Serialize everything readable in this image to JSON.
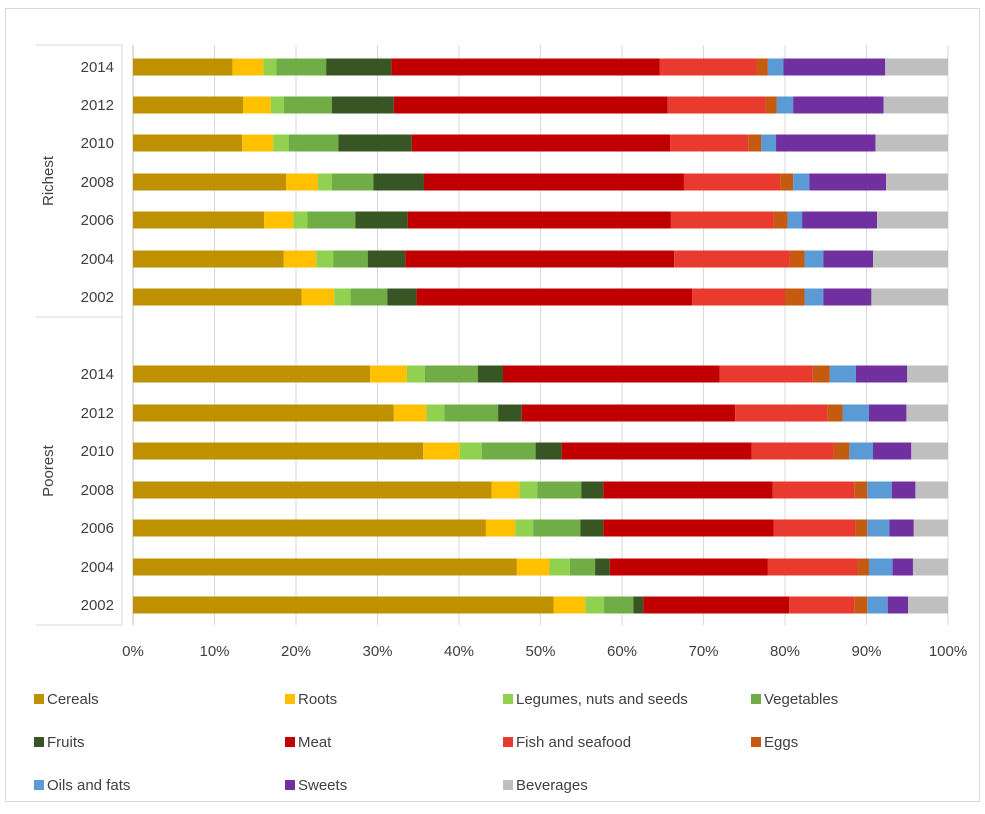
{
  "chart_data": {
    "type": "bar",
    "orientation": "horizontal",
    "stacked": true,
    "percent": true,
    "xlim": [
      0,
      100
    ],
    "ticks": [
      "0%",
      "10%",
      "20%",
      "30%",
      "40%",
      "50%",
      "60%",
      "70%",
      "80%",
      "90%",
      "100%"
    ],
    "grid": true,
    "legend_position": "bottom",
    "groups": [
      {
        "name": "Richest",
        "categories": [
          "2014",
          "2012",
          "2010",
          "2008",
          "2006",
          "2004",
          "2002"
        ]
      },
      {
        "name": "Poorest",
        "categories": [
          "2014",
          "2012",
          "2010",
          "2008",
          "2006",
          "2004",
          "2002"
        ]
      }
    ],
    "series": [
      {
        "name": "Cereals",
        "color": "#BF9000",
        "values": [
          12.2,
          13.5,
          13.4,
          18.8,
          16.1,
          18.5,
          20.7,
          29.1,
          32.0,
          35.6,
          44.0,
          43.3,
          47.1,
          51.6
        ]
      },
      {
        "name": "Roots",
        "color": "#FFC000",
        "values": [
          3.8,
          3.4,
          3.8,
          3.9,
          3.6,
          4.0,
          4.0,
          4.5,
          4.0,
          4.5,
          3.4,
          3.6,
          4.0,
          3.9
        ]
      },
      {
        "name": "Legumes, nuts and seeds",
        "color": "#92D050",
        "values": [
          1.6,
          1.6,
          1.9,
          1.7,
          1.7,
          2.1,
          2.0,
          2.2,
          2.2,
          2.7,
          2.2,
          2.2,
          2.5,
          2.3
        ]
      },
      {
        "name": "Vegetables",
        "color": "#70AD47",
        "values": [
          6.1,
          5.9,
          6.1,
          5.1,
          5.9,
          4.2,
          4.5,
          6.5,
          6.6,
          6.6,
          5.4,
          5.8,
          3.1,
          3.6
        ]
      },
      {
        "name": "Fruits",
        "color": "#375623",
        "values": [
          8.0,
          7.6,
          9.0,
          6.2,
          6.4,
          4.6,
          3.6,
          3.1,
          2.9,
          3.2,
          2.7,
          2.8,
          1.8,
          1.2
        ]
      },
      {
        "name": "Meat",
        "color": "#C00000",
        "values": [
          32.9,
          33.6,
          31.7,
          31.9,
          32.3,
          33.0,
          33.8,
          26.6,
          26.2,
          23.3,
          20.8,
          20.9,
          19.4,
          17.9
        ]
      },
      {
        "name": "Fish and seafood",
        "color": "#E83A2E",
        "values": [
          11.9,
          12.0,
          9.6,
          11.8,
          12.6,
          14.2,
          11.4,
          11.4,
          11.3,
          10.1,
          10.0,
          10.0,
          11.0,
          8.0
        ]
      },
      {
        "name": "Eggs",
        "color": "#C55A11",
        "values": [
          1.4,
          1.4,
          1.6,
          1.6,
          1.7,
          1.8,
          2.4,
          2.1,
          1.9,
          1.9,
          1.6,
          1.5,
          1.4,
          1.6
        ]
      },
      {
        "name": "Oils and fats",
        "color": "#5B9BD5",
        "values": [
          1.9,
          2.0,
          1.8,
          2.0,
          1.8,
          2.3,
          2.3,
          3.2,
          3.2,
          2.9,
          3.0,
          2.7,
          2.9,
          2.5
        ]
      },
      {
        "name": "Sweets",
        "color": "#7030A0",
        "values": [
          12.5,
          11.1,
          12.2,
          9.4,
          9.2,
          6.1,
          5.9,
          6.3,
          4.6,
          4.7,
          2.9,
          3.0,
          2.5,
          2.5
        ]
      },
      {
        "name": "Beverages",
        "color": "#BFBFBF",
        "values": [
          7.7,
          7.9,
          8.9,
          7.6,
          8.7,
          9.2,
          9.4,
          5.0,
          5.1,
          4.5,
          4.0,
          4.2,
          4.3,
          4.9
        ]
      }
    ]
  }
}
